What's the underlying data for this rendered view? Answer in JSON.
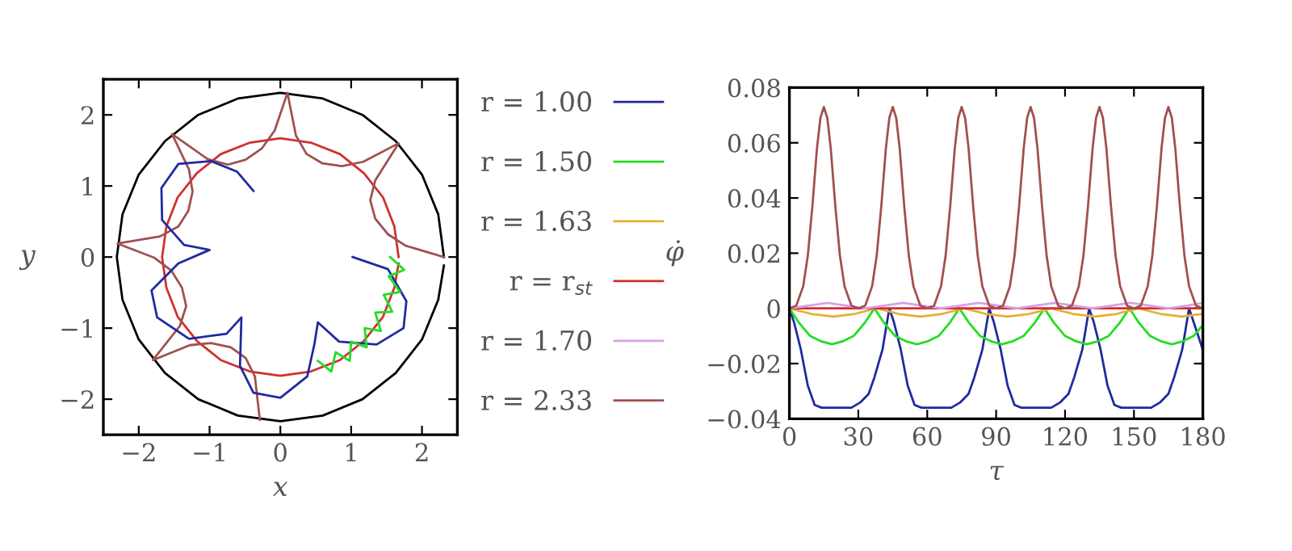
{
  "chart_data": [
    {
      "type": "line",
      "xlabel": "x",
      "ylabel": "y",
      "xlim": [
        -2.5,
        2.5
      ],
      "ylim": [
        -2.5,
        2.5
      ],
      "xticks": [
        {
          "value": -2,
          "label": "−2"
        },
        {
          "value": -1,
          "label": "−1"
        },
        0,
        1,
        2
      ],
      "yticks": [
        {
          "value": -2,
          "label": "−2"
        },
        {
          "value": -1,
          "label": "−1"
        },
        0,
        1,
        2
      ],
      "grid": false,
      "legend": false,
      "series": [
        {
          "color": "#000000",
          "x": [
            2.31,
            2.23,
            2.0,
            1.63,
            1.16,
            0.6,
            0,
            -0.6,
            -1.16,
            -1.63,
            -2.0,
            -2.23,
            -2.31,
            -2.23,
            -2.0,
            -1.63,
            -1.16,
            -0.6,
            0,
            0.6,
            1.16,
            1.63,
            2.0,
            2.23,
            2.31
          ],
          "values": [
            0,
            0.6,
            1.16,
            1.63,
            2.0,
            2.23,
            2.31,
            2.23,
            2.0,
            1.63,
            1.16,
            0.6,
            0,
            -0.6,
            -1.16,
            -1.63,
            -2.0,
            -2.23,
            -2.31,
            -2.23,
            -2.0,
            -1.63,
            -1.16,
            -0.6,
            -0.12
          ]
        },
        {
          "color": "#d03030",
          "x": [
            1.67,
            1.61,
            1.45,
            1.18,
            0.84,
            0.43,
            0,
            -0.43,
            -0.84,
            -1.18,
            -1.45,
            -1.61,
            -1.67,
            -1.61,
            -1.45,
            -1.18,
            -0.84,
            -0.43,
            0,
            0.43,
            0.84,
            1.18,
            1.45,
            1.61,
            1.67
          ],
          "values": [
            0,
            0.43,
            0.84,
            1.18,
            1.45,
            1.61,
            1.67,
            1.61,
            1.45,
            1.18,
            0.84,
            0.43,
            0,
            -0.43,
            -0.84,
            -1.18,
            -1.45,
            -1.61,
            -1.67,
            -1.61,
            -1.45,
            -1.18,
            -0.84,
            -0.43,
            -0.09
          ]
        },
        {
          "color": "#a05050",
          "x": [
            2.31,
            1.77,
            1.52,
            1.34,
            1.27,
            1.34,
            1.67,
            1.17,
            0.87,
            0.59,
            0.37,
            0.22,
            0.1,
            -0.08,
            -0.26,
            -0.49,
            -0.74,
            -1.03,
            -1.53,
            -1.29,
            -1.24,
            -1.3,
            -1.44,
            -1.7,
            -2.3,
            -1.78,
            -1.54,
            -1.39,
            -1.33,
            -1.42,
            -1.8,
            -1.28,
            -0.98,
            -0.7,
            -0.49,
            -0.36,
            -0.29
          ],
          "values": [
            0,
            0.16,
            0.32,
            0.54,
            0.8,
            1.08,
            1.6,
            1.34,
            1.28,
            1.32,
            1.45,
            1.71,
            2.31,
            1.78,
            1.53,
            1.37,
            1.3,
            1.38,
            1.73,
            1.23,
            0.92,
            0.65,
            0.43,
            0.29,
            0.19,
            -0.01,
            -0.19,
            -0.43,
            -0.69,
            -0.97,
            -1.45,
            -1.24,
            -1.21,
            -1.27,
            -1.42,
            -1.68,
            -2.29
          ]
        },
        {
          "color": "#1f2aa0",
          "x": [
            1.02,
            1.52,
            1.78,
            1.74,
            1.36,
            0.83,
            0.53,
            0.48,
            0.38,
            0,
            -0.38,
            -0.57,
            -0.55,
            -0.76,
            -1.29,
            -1.74,
            -1.82,
            -1.44,
            -1.0,
            -1.36,
            -1.67,
            -1.68,
            -1.44,
            -0.98,
            -0.61,
            -0.38
          ],
          "values": [
            0,
            -0.17,
            -0.62,
            -1.0,
            -1.23,
            -1.19,
            -0.92,
            -1.23,
            -1.68,
            -1.98,
            -1.91,
            -1.53,
            -0.85,
            -1.08,
            -1.15,
            -0.85,
            -0.47,
            -0.09,
            0.1,
            0.17,
            0.52,
            0.97,
            1.31,
            1.35,
            1.2,
            0.93
          ]
        },
        {
          "color": "#22dd22",
          "x": [
            1.55,
            1.75,
            1.53,
            1.69,
            1.46,
            1.58,
            1.34,
            1.42,
            1.19,
            1.22,
            1.0,
            0.98,
            0.78,
            0.72,
            0.53
          ],
          "values": [
            0,
            -0.18,
            -0.27,
            -0.49,
            -0.53,
            -0.77,
            -0.78,
            -1.04,
            -1.0,
            -1.27,
            -1.19,
            -1.46,
            -1.34,
            -1.61,
            -1.46
          ]
        }
      ]
    },
    {
      "type": "line",
      "xlabel": "τ",
      "ylabel": "φ̇",
      "xlim": [
        0,
        180
      ],
      "ylim": [
        -0.04,
        0.08
      ],
      "xticks": [
        0,
        30,
        60,
        90,
        120,
        150,
        180
      ],
      "yticks": [
        {
          "value": -0.04,
          "label": "−0.04"
        },
        {
          "value": -0.02,
          "label": "−0.02"
        },
        0,
        0.02,
        0.04,
        0.06,
        0.08
      ],
      "grid": false,
      "legend": "left",
      "series": [
        {
          "name": "r = 1.00",
          "color": "#1f2aa0",
          "x": [
            0,
            2,
            5,
            8,
            11,
            14,
            20,
            27,
            31,
            34.5,
            37,
            40.5,
            42.5,
            43.5,
            45.5,
            48.5,
            51.5,
            54.5,
            57.5,
            63.5,
            70.5,
            74.5,
            78,
            80.5,
            84,
            86,
            87,
            89,
            92,
            95,
            98,
            101,
            107,
            114,
            118,
            121.5,
            124,
            127.5,
            129.5,
            130.5,
            132.5,
            135.5,
            138.5,
            141.5,
            144.5,
            150.5,
            157.5,
            161.5,
            165,
            167.5,
            171,
            173,
            174,
            176,
            180
          ],
          "values": [
            0,
            -0.005,
            -0.015,
            -0.028,
            -0.035,
            -0.036,
            -0.036,
            -0.036,
            -0.034,
            -0.031,
            -0.025,
            -0.015,
            -0.005,
            0,
            -0.005,
            -0.015,
            -0.028,
            -0.035,
            -0.036,
            -0.036,
            -0.036,
            -0.034,
            -0.031,
            -0.025,
            -0.015,
            -0.005,
            0,
            -0.005,
            -0.015,
            -0.028,
            -0.035,
            -0.036,
            -0.036,
            -0.036,
            -0.034,
            -0.031,
            -0.025,
            -0.015,
            -0.005,
            0,
            -0.005,
            -0.015,
            -0.028,
            -0.035,
            -0.036,
            -0.036,
            -0.036,
            -0.034,
            -0.031,
            -0.025,
            -0.015,
            -0.005,
            0,
            -0.005,
            -0.015
          ]
        },
        {
          "name": "r = 1.50",
          "color": "#22dd22",
          "x": [
            0,
            4,
            9,
            14,
            18.5,
            23,
            28,
            33,
            37,
            41,
            46,
            51,
            55.5,
            60,
            65,
            70,
            74,
            78,
            83,
            88,
            92.5,
            97,
            102,
            107,
            111,
            115,
            120,
            125,
            129.5,
            134,
            139,
            144,
            148,
            152,
            157,
            162,
            166.5,
            171,
            176,
            180
          ],
          "values": [
            0,
            -0.005,
            -0.01,
            -0.012,
            -0.013,
            -0.012,
            -0.01,
            -0.005,
            0,
            -0.005,
            -0.01,
            -0.012,
            -0.013,
            -0.012,
            -0.01,
            -0.005,
            0,
            -0.005,
            -0.01,
            -0.012,
            -0.013,
            -0.012,
            -0.01,
            -0.005,
            0,
            -0.005,
            -0.01,
            -0.012,
            -0.013,
            -0.012,
            -0.01,
            -0.005,
            0,
            -0.005,
            -0.01,
            -0.012,
            -0.013,
            -0.012,
            -0.01,
            -0.006
          ]
        },
        {
          "name": "r = 1.63",
          "color": "#e6b030",
          "x": [
            0,
            9.5,
            19,
            28.5,
            38,
            47.5,
            57,
            66.5,
            76,
            85.5,
            95,
            104.5,
            114,
            123.5,
            133,
            142.5,
            152,
            161.5,
            171,
            180
          ],
          "values": [
            0,
            -0.002,
            -0.003,
            -0.002,
            0,
            -0.002,
            -0.003,
            -0.002,
            0,
            -0.002,
            -0.003,
            -0.002,
            0,
            -0.002,
            -0.003,
            -0.002,
            0,
            -0.002,
            -0.003,
            -0.002
          ]
        },
        {
          "name": "r = r$_{st}$",
          "color": "#d03030",
          "x": [
            0,
            180
          ],
          "values": [
            0,
            0
          ]
        },
        {
          "name": "r = 1.70",
          "color": "#d8a0e8",
          "x": [
            0,
            8,
            16.5,
            25,
            33,
            41,
            49.5,
            58,
            66,
            74,
            82.5,
            91,
            99,
            107,
            115.5,
            124,
            132,
            140,
            148.5,
            157,
            165,
            173,
            180
          ],
          "values": [
            0,
            0.001,
            0.002,
            0.001,
            0,
            0.001,
            0.002,
            0.001,
            0,
            0.001,
            0.002,
            0.001,
            0,
            0.001,
            0.002,
            0.001,
            0,
            0.001,
            0.002,
            0.001,
            0,
            0.001,
            0.002
          ]
        },
        {
          "name": "r = 2.33",
          "color": "#a05050",
          "x": [
            0,
            3,
            6,
            8,
            10,
            12,
            13.5,
            15,
            16.5,
            18,
            20,
            22,
            24,
            27,
            30,
            33,
            36,
            38,
            40,
            42,
            43.5,
            45,
            46.5,
            48,
            50,
            52,
            54,
            57,
            60,
            63,
            66,
            68,
            70,
            72,
            73.5,
            75,
            76.5,
            78,
            80,
            82,
            84,
            87,
            90,
            93,
            96,
            98,
            100,
            102,
            103.5,
            105,
            106.5,
            108,
            110,
            112,
            114,
            117,
            120,
            123,
            126,
            128,
            130,
            132,
            133.5,
            135,
            136.5,
            138,
            140,
            142,
            144,
            147,
            150,
            153,
            156,
            158,
            160,
            162,
            163.5,
            165,
            166.5,
            168,
            170,
            172,
            174,
            177,
            180
          ],
          "values": [
            0,
            0.001,
            0.008,
            0.019,
            0.037,
            0.058,
            0.069,
            0.073,
            0.069,
            0.058,
            0.037,
            0.019,
            0.008,
            0.001,
            0,
            0.001,
            0.008,
            0.019,
            0.037,
            0.058,
            0.069,
            0.073,
            0.069,
            0.058,
            0.037,
            0.019,
            0.008,
            0.001,
            0,
            0.001,
            0.008,
            0.019,
            0.037,
            0.058,
            0.069,
            0.073,
            0.069,
            0.058,
            0.037,
            0.019,
            0.008,
            0.001,
            0,
            0.001,
            0.008,
            0.019,
            0.037,
            0.058,
            0.069,
            0.073,
            0.069,
            0.058,
            0.037,
            0.019,
            0.008,
            0.001,
            0,
            0.001,
            0.008,
            0.019,
            0.037,
            0.058,
            0.069,
            0.073,
            0.069,
            0.058,
            0.037,
            0.019,
            0.008,
            0.001,
            0,
            0.001,
            0.008,
            0.019,
            0.037,
            0.058,
            0.069,
            0.073,
            0.069,
            0.058,
            0.037,
            0.019,
            0.008,
            0.001,
            0
          ]
        }
      ]
    }
  ]
}
